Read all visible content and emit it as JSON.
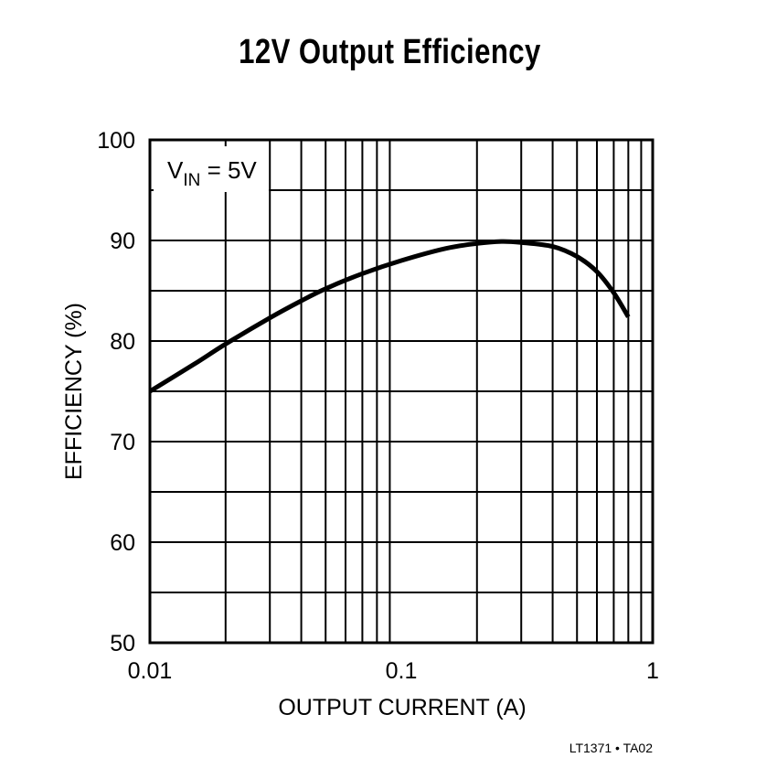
{
  "chart_data": {
    "type": "line",
    "title": "12V Output Efficiency",
    "xlabel": "OUTPUT CURRENT (A)",
    "ylabel": "EFFICIENCY (%)",
    "xscale": "log",
    "xlim": [
      0.01,
      1
    ],
    "ylim": [
      50,
      100
    ],
    "x_tick_labels": [
      "0.01",
      "0.1",
      "1"
    ],
    "y_tick_labels": [
      "50",
      "60",
      "70",
      "80",
      "90",
      "100"
    ],
    "y_grid_step": 5,
    "grid": true,
    "annotation": {
      "main": "V",
      "sub": "IN",
      "rest": " = 5V"
    },
    "footer": "LT1371 • TA02",
    "series": [
      {
        "name": "VIN = 5V",
        "x": [
          0.01,
          0.015,
          0.02,
          0.03,
          0.04,
          0.05,
          0.07,
          0.1,
          0.15,
          0.2,
          0.25,
          0.3,
          0.4,
          0.5,
          0.6,
          0.7,
          0.8
        ],
        "values": [
          75.0,
          77.7,
          79.7,
          82.3,
          84.0,
          85.2,
          86.7,
          88.0,
          89.2,
          89.7,
          89.9,
          89.8,
          89.4,
          88.4,
          86.9,
          84.8,
          82.4
        ]
      }
    ]
  }
}
